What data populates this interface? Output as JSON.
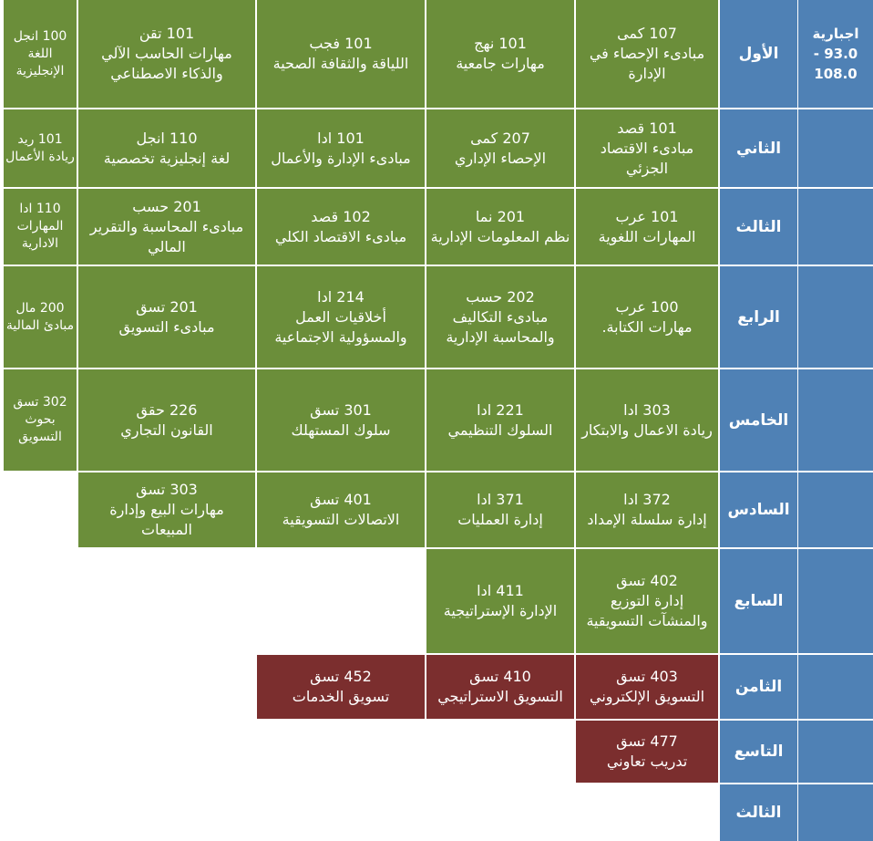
{
  "header": {
    "text": "اجبارية 93.0 - 108.0"
  },
  "rows": [
    {
      "level": "الأول",
      "cells": [
        {
          "code": "107 كمى",
          "name": "مبادىء الإحصاء في الإدارة",
          "color": "#6b8e3a"
        },
        {
          "code": "101 نهج",
          "name": "مهارات جامعية",
          "color": "#6b8e3a"
        },
        {
          "code": "101 فجب",
          "name": "اللياقة والثقافة الصحية",
          "color": "#6b8e3a"
        },
        {
          "code": "101 تقن",
          "name": "مهارات الحاسب الآلي والذكاء الاصطناعي",
          "color": "#6b8e3a"
        },
        {
          "code": "100 انجل",
          "name": "اللغة الإنجليزية",
          "color": "#6b8e3a"
        }
      ]
    },
    {
      "level": "الثاني",
      "cells": [
        {
          "code": "101 قصد",
          "name": "مبادىء الاقتصاد الجزئي",
          "color": "#6b8e3a"
        },
        {
          "code": "207 كمى",
          "name": "الإحصاء الإداري",
          "color": "#6b8e3a"
        },
        {
          "code": "101 ادا",
          "name": "مبادىء الإدارة والأعمال",
          "color": "#6b8e3a"
        },
        {
          "code": "110 انجل",
          "name": "لغة إنجليزية تخصصية",
          "color": "#6b8e3a"
        },
        {
          "code": "101 ريد",
          "name": "ريادة الأعمال",
          "color": "#6b8e3a"
        }
      ]
    },
    {
      "level": "الثالث",
      "cells": [
        {
          "code": "101 عرب",
          "name": "المهارات اللغوية",
          "color": "#6b8e3a"
        },
        {
          "code": "201 نما",
          "name": "نظم المعلومات الإدارية",
          "color": "#6b8e3a"
        },
        {
          "code": "102 قصد",
          "name": "مبادىء الاقتصاد الكلي",
          "color": "#6b8e3a"
        },
        {
          "code": "201 حسب",
          "name": "مبادىء المحاسبة والتقرير المالي",
          "color": "#6b8e3a"
        },
        {
          "code": "110 ادا",
          "name": "المهارات الادارية",
          "color": "#6b8e3a"
        }
      ]
    },
    {
      "level": "الرابع",
      "cells": [
        {
          "code": "100 عرب",
          "name": "مهارات الكتابة.",
          "color": "#6b8e3a"
        },
        {
          "code": "202 حسب",
          "name": "مبادىء التكاليف والمحاسبة الإدارية",
          "color": "#6b8e3a"
        },
        {
          "code": "214 ادا",
          "name": "أخلاقيات العمل والمسؤولية الاجتماعية",
          "color": "#6b8e3a"
        },
        {
          "code": "201 تسق",
          "name": "مبادىء التسويق",
          "color": "#6b8e3a"
        },
        {
          "code": "200 مال",
          "name": "مبادئ المالية",
          "color": "#6b8e3a"
        }
      ]
    },
    {
      "level": "الخامس",
      "cells": [
        {
          "code": "303 ادا",
          "name": "ريادة الاعمال والابتكار",
          "color": "#6b8e3a"
        },
        {
          "code": "221 ادا",
          "name": "السلوك التنظيمي",
          "color": "#6b8e3a"
        },
        {
          "code": "301 تسق",
          "name": "سلوك المستهلك",
          "color": "#6b8e3a"
        },
        {
          "code": "226 حقق",
          "name": "القانون التجاري",
          "color": "#6b8e3a"
        },
        {
          "code": "302 تسق",
          "name": "بحوث التسويق",
          "color": "#6b8e3a"
        }
      ]
    },
    {
      "level": "السادس",
      "cells": [
        {
          "code": "372 ادا",
          "name": "إدارة سلسلة الإمداد",
          "color": "#6b8e3a"
        },
        {
          "code": "371 ادا",
          "name": "إدارة العمليات",
          "color": "#6b8e3a"
        },
        {
          "code": "401 تسق",
          "name": "الاتصالات التسويقية",
          "color": "#6b8e3a"
        },
        {
          "code": "303 تسق",
          "name": "مهارات البيع وإدارة المبيعات",
          "color": "#6b8e3a"
        }
      ]
    },
    {
      "level": "السابع",
      "cells": [
        {
          "code": "402 تسق",
          "name": "إدارة التوزيع والمنشآت التسويقية",
          "color": "#6b8e3a"
        },
        {
          "code": "411 ادا",
          "name": "الإدارة الإستراتيجية",
          "color": "#6b8e3a"
        }
      ]
    },
    {
      "level": "الثامن",
      "cells": [
        {
          "code": "403 تسق",
          "name": "التسويق الإلكتروني",
          "color": "#7b2e2e"
        },
        {
          "code": "410 تسق",
          "name": "التسويق الاستراتيجي",
          "color": "#7b2e2e"
        },
        {
          "code": "452 تسق",
          "name": "تسويق الخدمات",
          "color": "#7b2e2e"
        }
      ]
    },
    {
      "level": "التاسع",
      "cells": [
        {
          "code": "477 تسق",
          "name": "تدريب تعاوني",
          "color": "#7b2e2e"
        }
      ]
    },
    {
      "level": "الثالث",
      "cells": []
    }
  ]
}
